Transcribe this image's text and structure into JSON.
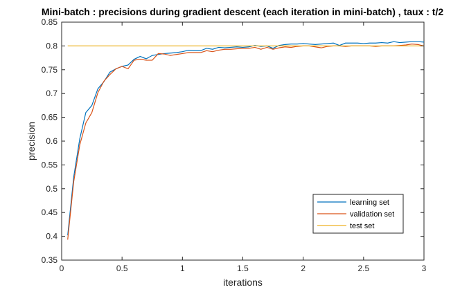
{
  "chart_data": {
    "type": "line",
    "title": "Mini-batch : precisions during gradient descent (each iteration in mini-batch) , taux : t/2",
    "xlabel": "iterations",
    "ylabel": "precision",
    "xlim": [
      0,
      3
    ],
    "ylim": [
      0.35,
      0.85
    ],
    "xticks": [
      0,
      0.5,
      1,
      1.5,
      2,
      2.5,
      3
    ],
    "xtick_labels": [
      "0",
      "0.5",
      "1",
      "1.5",
      "2",
      "2.5",
      "3"
    ],
    "yticks": [
      0.35,
      0.4,
      0.45,
      0.5,
      0.55,
      0.6,
      0.65,
      0.7,
      0.75,
      0.8,
      0.85
    ],
    "ytick_labels": [
      "0.35",
      "0.4",
      "0.45",
      "0.5",
      "0.55",
      "0.6",
      "0.65",
      "0.7",
      "0.75",
      "0.8",
      "0.85"
    ],
    "grid": false,
    "legend_position": "bottom-right",
    "x": [
      0.05,
      0.1,
      0.15,
      0.2,
      0.25,
      0.3,
      0.35,
      0.4,
      0.45,
      0.5,
      0.55,
      0.6,
      0.65,
      0.7,
      0.75,
      0.8,
      0.85,
      0.9,
      0.95,
      1.0,
      1.05,
      1.1,
      1.15,
      1.2,
      1.25,
      1.3,
      1.35,
      1.4,
      1.45,
      1.5,
      1.55,
      1.6,
      1.65,
      1.7,
      1.75,
      1.8,
      1.85,
      1.9,
      1.95,
      2.0,
      2.05,
      2.1,
      2.15,
      2.2,
      2.25,
      2.3,
      2.35,
      2.4,
      2.45,
      2.5,
      2.55,
      2.6,
      2.65,
      2.7,
      2.75,
      2.8,
      2.85,
      2.9,
      2.95,
      3.0
    ],
    "series": [
      {
        "name": "learning set",
        "color": "#0072BD",
        "values": [
          0.402,
          0.525,
          0.605,
          0.66,
          0.675,
          0.71,
          0.725,
          0.745,
          0.752,
          0.757,
          0.76,
          0.772,
          0.778,
          0.773,
          0.78,
          0.782,
          0.784,
          0.785,
          0.786,
          0.788,
          0.791,
          0.79,
          0.79,
          0.795,
          0.793,
          0.797,
          0.796,
          0.797,
          0.798,
          0.797,
          0.798,
          0.801,
          0.799,
          0.8,
          0.795,
          0.801,
          0.803,
          0.804,
          0.804,
          0.805,
          0.804,
          0.803,
          0.804,
          0.805,
          0.806,
          0.801,
          0.806,
          0.806,
          0.806,
          0.805,
          0.806,
          0.806,
          0.807,
          0.806,
          0.809,
          0.807,
          0.808,
          0.809,
          0.809,
          0.808
        ]
      },
      {
        "name": "validation set",
        "color": "#D95319",
        "values": [
          0.393,
          0.515,
          0.592,
          0.638,
          0.66,
          0.702,
          0.726,
          0.74,
          0.752,
          0.757,
          0.752,
          0.77,
          0.772,
          0.77,
          0.77,
          0.784,
          0.783,
          0.78,
          0.782,
          0.784,
          0.786,
          0.786,
          0.786,
          0.79,
          0.788,
          0.791,
          0.793,
          0.793,
          0.794,
          0.795,
          0.795,
          0.797,
          0.793,
          0.797,
          0.793,
          0.796,
          0.798,
          0.797,
          0.799,
          0.8,
          0.8,
          0.798,
          0.796,
          0.799,
          0.8,
          0.8,
          0.799,
          0.8,
          0.8,
          0.8,
          0.8,
          0.799,
          0.8,
          0.8,
          0.8,
          0.801,
          0.802,
          0.804,
          0.803,
          0.8
        ]
      },
      {
        "name": "test set",
        "color": "#EDB120",
        "values": [
          0.8,
          0.8,
          0.8,
          0.8,
          0.8,
          0.8,
          0.8,
          0.8,
          0.8,
          0.8,
          0.8,
          0.8,
          0.8,
          0.8,
          0.8,
          0.8,
          0.8,
          0.8,
          0.8,
          0.8,
          0.8,
          0.8,
          0.8,
          0.8,
          0.8,
          0.8,
          0.8,
          0.8,
          0.8,
          0.8,
          0.8,
          0.8,
          0.8,
          0.8,
          0.8,
          0.8,
          0.8,
          0.8,
          0.8,
          0.8,
          0.8,
          0.8,
          0.8,
          0.8,
          0.8,
          0.8,
          0.8,
          0.8,
          0.8,
          0.8,
          0.8,
          0.8,
          0.8,
          0.8,
          0.8,
          0.8,
          0.8,
          0.8,
          0.8,
          0.8
        ]
      }
    ]
  }
}
